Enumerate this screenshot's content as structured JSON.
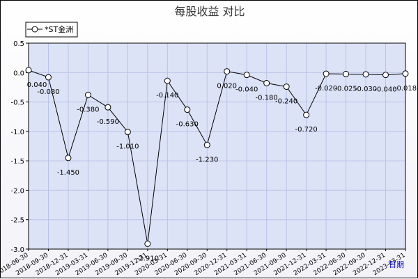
{
  "chart_data": {
    "type": "line",
    "title": "每股收益  对比",
    "xlabel": "日期",
    "ylabel": "",
    "ylim": [
      -3.0,
      0.5
    ],
    "yticks": [
      "0.5",
      "0.0",
      "-0.5",
      "-1.0",
      "-1.5",
      "-2.0",
      "-2.5",
      "-3.0"
    ],
    "grid": true,
    "legend_position": "top-left",
    "categories": [
      "2018-06-30",
      "2018-09-30",
      "2018-12-31",
      "2019-03-31",
      "2019-06-30",
      "2019-09-30",
      "2019-12-31",
      "2020-03-31",
      "2020-06-30",
      "2020-09-30",
      "2020-12-31",
      "2021-03-31",
      "2021-06-30",
      "2021-09-30",
      "2021-12-31",
      "2022-03-31",
      "2022-06-30",
      "2022-09-30",
      "2022-12-31",
      "2023-03-31"
    ],
    "series": [
      {
        "name": "*ST金洲",
        "color": "#000000",
        "values": [
          0.04,
          -0.08,
          -1.45,
          -0.38,
          -0.59,
          -1.01,
          -2.91,
          -0.14,
          -0.63,
          -1.23,
          0.02,
          -0.04,
          -0.18,
          -0.24,
          -0.72,
          -0.02,
          -0.025,
          -0.03,
          -0.04,
          -0.018
        ],
        "labels": [
          "0.040",
          "-0.080",
          "-1.450",
          "-0.380",
          "-0.590",
          "-1.010",
          "-2.910",
          "-0.140",
          "-0.630",
          "-1.230",
          "0.020",
          "-0.040",
          "-0.180",
          "-0.240",
          "-0.720",
          "-0.020",
          "-0.025",
          "-0.030",
          "-0.040",
          "-0.018"
        ]
      }
    ],
    "colors": {
      "plot_bg": "#dde3f7",
      "grid": "#b8c2e6",
      "line": "#000000",
      "xlabel": "#0000cc"
    }
  }
}
